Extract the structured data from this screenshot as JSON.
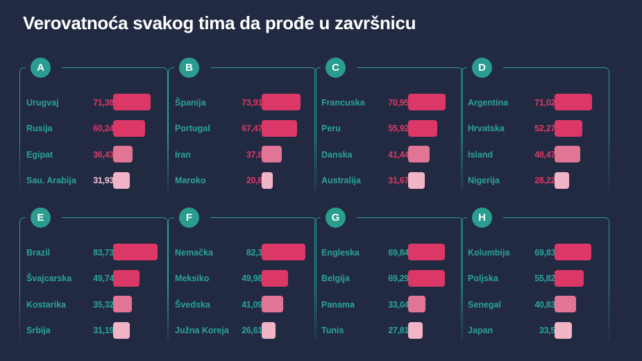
{
  "title": "Verovatnoća svakog tima da prođe u završnicu",
  "colors": {
    "background": "#222a42",
    "accent_teal": "#2a9d8f",
    "bar_rank1": "#dc3867",
    "bar_rank2": "#dc3867",
    "bar_rank3": "#e07595",
    "bar_rank4": "#f2b5c8",
    "value_pink": "#dc3867",
    "value_teal": "#2aa39a"
  },
  "groups": [
    {
      "letter": "A",
      "teams": [
        {
          "name": "Urugvaj",
          "value": "71,38"
        },
        {
          "name": "Rusija",
          "value": "60,24"
        },
        {
          "name": "Egipat",
          "value": "36,43"
        },
        {
          "name": "Sau. Arabija",
          "value": "31,93"
        }
      ]
    },
    {
      "letter": "B",
      "teams": [
        {
          "name": "Španija",
          "value": "73,91"
        },
        {
          "name": "Portugal",
          "value": "67,47"
        },
        {
          "name": "Iran",
          "value": "37,8"
        },
        {
          "name": "Maroko",
          "value": "20,8"
        }
      ]
    },
    {
      "letter": "C",
      "teams": [
        {
          "name": "Francuska",
          "value": "70,95"
        },
        {
          "name": "Peru",
          "value": "55,92"
        },
        {
          "name": "Danska",
          "value": "41,44"
        },
        {
          "name": "Australija",
          "value": "31,67"
        }
      ]
    },
    {
      "letter": "D",
      "teams": [
        {
          "name": "Argentina",
          "value": "71,02"
        },
        {
          "name": "Hrvatska",
          "value": "52,27"
        },
        {
          "name": "Island",
          "value": "48,47"
        },
        {
          "name": "Nigerija",
          "value": "28,22"
        }
      ]
    },
    {
      "letter": "E",
      "teams": [
        {
          "name": "Brazil",
          "value": "83,73"
        },
        {
          "name": "Švajcarska",
          "value": "49,74"
        },
        {
          "name": "Kostarika",
          "value": "35,32"
        },
        {
          "name": "Srbija",
          "value": "31,19"
        }
      ]
    },
    {
      "letter": "F",
      "teams": [
        {
          "name": "Nemačka",
          "value": "82,3"
        },
        {
          "name": "Meksiko",
          "value": "49,98"
        },
        {
          "name": "Švedska",
          "value": "41,09"
        },
        {
          "name": "Južna Koreja",
          "value": "26,61"
        }
      ]
    },
    {
      "letter": "G",
      "teams": [
        {
          "name": "Engleska",
          "value": "69,84"
        },
        {
          "name": "Belgija",
          "value": "69,29"
        },
        {
          "name": "Panama",
          "value": "33,04"
        },
        {
          "name": "Tunis",
          "value": "27,81"
        }
      ]
    },
    {
      "letter": "H",
      "teams": [
        {
          "name": "Kolumbija",
          "value": "69,83"
        },
        {
          "name": "Poljska",
          "value": "55,82"
        },
        {
          "name": "Senegal",
          "value": "40,83"
        },
        {
          "name": "Japan",
          "value": "33,5"
        }
      ]
    }
  ],
  "chart_data": {
    "type": "bar",
    "orientation": "horizontal",
    "title": "Verovatnoća svakog tima da prođe u završnicu",
    "xlabel": "",
    "ylabel": "",
    "unit": "%",
    "grid": false,
    "legend": null,
    "panels": [
      {
        "group": "A",
        "categories": [
          "Urugvaj",
          "Rusija",
          "Egipat",
          "Sau. Arabija"
        ],
        "values": [
          71.38,
          60.24,
          36.43,
          31.93
        ]
      },
      {
        "group": "B",
        "categories": [
          "Španija",
          "Portugal",
          "Iran",
          "Maroko"
        ],
        "values": [
          73.91,
          67.47,
          37.8,
          20.8
        ]
      },
      {
        "group": "C",
        "categories": [
          "Francuska",
          "Peru",
          "Danska",
          "Australija"
        ],
        "values": [
          70.95,
          55.92,
          41.44,
          31.67
        ]
      },
      {
        "group": "D",
        "categories": [
          "Argentina",
          "Hrvatska",
          "Island",
          "Nigerija"
        ],
        "values": [
          71.02,
          52.27,
          48.47,
          28.22
        ]
      },
      {
        "group": "E",
        "categories": [
          "Brazil",
          "Švajcarska",
          "Kostarika",
          "Srbija"
        ],
        "values": [
          83.73,
          49.74,
          35.32,
          31.19
        ]
      },
      {
        "group": "F",
        "categories": [
          "Nemačka",
          "Meksiko",
          "Švedska",
          "Južna Koreja"
        ],
        "values": [
          82.3,
          49.98,
          41.09,
          26.61
        ]
      },
      {
        "group": "G",
        "categories": [
          "Engleska",
          "Belgija",
          "Panama",
          "Tunis"
        ],
        "values": [
          69.84,
          69.29,
          33.04,
          27.81
        ]
      },
      {
        "group": "H",
        "categories": [
          "Kolumbija",
          "Poljska",
          "Senegal",
          "Japan"
        ],
        "values": [
          69.83,
          55.82,
          40.83,
          33.5
        ]
      }
    ]
  }
}
